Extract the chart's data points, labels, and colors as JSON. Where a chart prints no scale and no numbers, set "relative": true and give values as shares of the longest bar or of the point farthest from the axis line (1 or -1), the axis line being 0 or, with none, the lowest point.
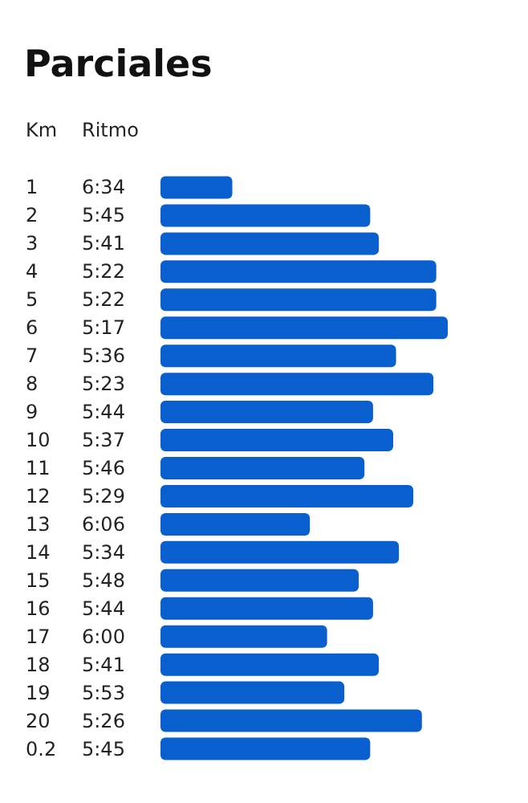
{
  "chart_data": {
    "type": "bar",
    "orientation": "horizontal",
    "relative": true,
    "title": "Parciales",
    "ylabel": "Km",
    "xlabel": "Ritmo",
    "color": "#0a5fcf",
    "categories": [
      "1",
      "2",
      "3",
      "4",
      "5",
      "6",
      "7",
      "8",
      "9",
      "10",
      "11",
      "12",
      "13",
      "14",
      "15",
      "16",
      "17",
      "18",
      "19",
      "20",
      "0.2"
    ],
    "values": [
      0.25,
      0.73,
      0.76,
      0.96,
      0.96,
      1,
      0.82,
      0.95,
      0.74,
      0.81,
      0.71,
      0.88,
      0.52,
      0.83,
      0.69,
      0.74,
      0.58,
      0.76,
      0.64,
      0.91,
      0.73
    ],
    "annotations": [
      "6:34",
      "5:45",
      "5:41",
      "5:22",
      "5:22",
      "5:17",
      "5:36",
      "5:23",
      "5:44",
      "5:37",
      "5:46",
      "5:29",
      "6:06",
      "5:34",
      "5:48",
      "5:44",
      "6:00",
      "5:41",
      "5:53",
      "5:26",
      "5:45"
    ]
  }
}
